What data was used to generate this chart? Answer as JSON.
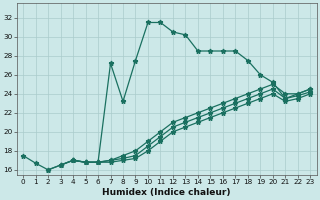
{
  "xlabel": "Humidex (Indice chaleur)",
  "xlim": [
    -0.5,
    23.5
  ],
  "ylim": [
    15.5,
    33.5
  ],
  "xticks": [
    0,
    1,
    2,
    3,
    4,
    5,
    6,
    7,
    8,
    9,
    10,
    11,
    12,
    13,
    14,
    15,
    16,
    17,
    18,
    19,
    20,
    21,
    22,
    23
  ],
  "yticks": [
    16,
    18,
    20,
    22,
    24,
    26,
    28,
    30,
    32
  ],
  "bg_color": "#cce8e8",
  "line_color": "#1a7060",
  "grid_color": "#aacccc",
  "lines": [
    {
      "x": [
        0,
        1,
        2,
        3,
        4,
        5,
        6,
        7,
        8,
        9,
        10,
        11,
        12,
        13,
        14,
        15,
        16,
        17,
        18,
        19,
        20,
        21,
        22,
        23
      ],
      "y": [
        17.5,
        16.7,
        16.0,
        16.5,
        17.0,
        16.8,
        16.8,
        27.2,
        23.2,
        27.5,
        31.5,
        31.5,
        30.5,
        30.2,
        28.5,
        28.5,
        28.5,
        28.5,
        27.5,
        26.0,
        25.2,
        23.5,
        24.0,
        24.5
      ]
    },
    {
      "x": [
        2,
        3,
        4,
        5,
        6,
        7,
        8,
        9,
        10,
        11,
        12,
        13,
        14,
        15,
        16,
        17,
        18,
        19,
        20,
        21,
        22,
        23
      ],
      "y": [
        16.0,
        16.5,
        17.0,
        16.8,
        16.8,
        17.0,
        17.5,
        18.0,
        19.0,
        20.0,
        21.0,
        21.5,
        22.0,
        22.5,
        23.0,
        23.5,
        24.0,
        24.5,
        25.0,
        24.0,
        24.0,
        24.5
      ]
    },
    {
      "x": [
        3,
        4,
        5,
        6,
        7,
        8,
        9,
        10,
        11,
        12,
        13,
        14,
        15,
        16,
        17,
        18,
        19,
        20,
        21,
        22,
        23
      ],
      "y": [
        16.5,
        17.0,
        16.8,
        16.8,
        17.0,
        17.2,
        17.5,
        18.5,
        19.5,
        20.5,
        21.0,
        21.5,
        22.0,
        22.5,
        23.0,
        23.5,
        24.0,
        24.5,
        23.5,
        23.8,
        24.2
      ]
    },
    {
      "x": [
        4,
        5,
        6,
        7,
        8,
        9,
        10,
        11,
        12,
        13,
        14,
        15,
        16,
        17,
        18,
        19,
        20,
        21,
        22,
        23
      ],
      "y": [
        17.0,
        16.8,
        16.8,
        16.8,
        17.0,
        17.2,
        18.0,
        19.0,
        20.0,
        20.5,
        21.0,
        21.5,
        22.0,
        22.5,
        23.0,
        23.5,
        24.0,
        23.2,
        23.5,
        24.0
      ]
    }
  ]
}
